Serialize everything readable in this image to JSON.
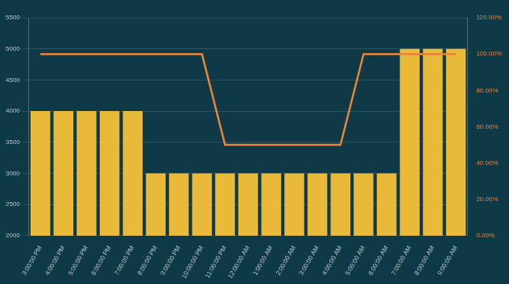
{
  "chart_data": {
    "type": "bar",
    "categories": [
      "3:00:00 PM",
      "4:00:00 PM",
      "5:00:00 PM",
      "6:00:00 PM",
      "7:00:00 PM",
      "8:00:00 PM",
      "9:00:00 PM",
      "10:00:00 PM",
      "11:00:00 PM",
      "12:00:00 AM",
      "1:00:00 AM",
      "2:00:00 AM",
      "3:00:00 AM",
      "4:00:00 AM",
      "5:00:00 AM",
      "6:00:00 AM",
      "7:00:00 AM",
      "8:00:00 AM",
      "9:00:00 AM"
    ],
    "series": [
      {
        "type": "bar",
        "color": "#e9b93a",
        "values": [
          4000,
          4000,
          4000,
          4000,
          4000,
          3000,
          3000,
          3000,
          3000,
          3000,
          3000,
          3000,
          3000,
          3000,
          3000,
          3000,
          5000,
          5000,
          5000
        ]
      },
      {
        "type": "line",
        "color": "#e8843c",
        "axis": "y2",
        "values": [
          100,
          100,
          100,
          100,
          100,
          100,
          100,
          100,
          50,
          50,
          50,
          50,
          50,
          50,
          100,
          100,
          100,
          100,
          100
        ]
      }
    ],
    "ylim": [
      2000,
      5500
    ],
    "yticks": [
      2000,
      2500,
      3000,
      3500,
      4000,
      4500,
      5000,
      5500
    ],
    "y2lim": [
      0,
      120
    ],
    "y2ticks": [
      {
        "value": 0,
        "label": "0.00%"
      },
      {
        "value": 20,
        "label": "20.00%"
      },
      {
        "value": 40,
        "label": "40.00%"
      },
      {
        "value": 60,
        "label": "60.00%"
      },
      {
        "value": 80,
        "label": "80.00%"
      },
      {
        "value": 100,
        "label": "100.00%"
      },
      {
        "value": 120,
        "label": "120.00%"
      }
    ],
    "grid": true
  }
}
